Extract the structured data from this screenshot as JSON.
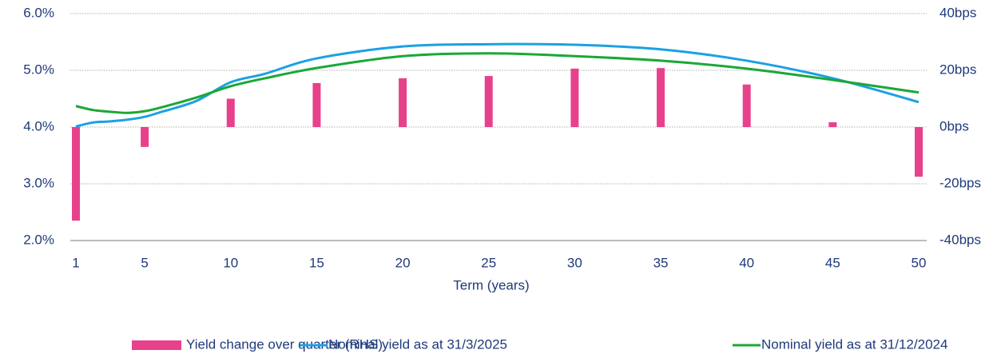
{
  "chart_data": {
    "type": "combo",
    "x_label": "Term (years)",
    "xlim": [
      1,
      50
    ],
    "xticks": [
      1,
      5,
      10,
      15,
      20,
      25,
      30,
      35,
      40,
      45,
      50
    ],
    "ylim": [
      2,
      6
    ],
    "yticks": [
      {
        "value": 2,
        "label": "2.0%"
      },
      {
        "value": 3,
        "label": "3.0%"
      },
      {
        "value": 4,
        "label": "4.0%"
      },
      {
        "value": 5,
        "label": "5.0%"
      },
      {
        "value": 6,
        "label": "6.0%"
      }
    ],
    "y2lim": [
      -40,
      40
    ],
    "y2ticks": [
      {
        "value": -40,
        "label": "-40bps"
      },
      {
        "value": -20,
        "label": "-20bps"
      },
      {
        "value": 0,
        "label": "0bps"
      },
      {
        "value": 20,
        "label": "20bps"
      },
      {
        "value": 40,
        "label": "40bps"
      }
    ],
    "grid": true,
    "legend": "bottom",
    "series": [
      {
        "name": "Yield change over quarter (RHS)",
        "type": "bar",
        "axis": "y2",
        "color": "#e8418c",
        "x": [
          1,
          5,
          10,
          15,
          20,
          25,
          30,
          35,
          40,
          45,
          50
        ],
        "values": [
          -33,
          -7,
          10,
          15.5,
          17.2,
          18,
          20.6,
          20.8,
          15,
          1.7,
          -17.5
        ]
      },
      {
        "name": "Nominal yield as at 31/3/2025",
        "type": "line",
        "color": "#1ba1e2",
        "x": [
          1,
          2,
          3,
          4,
          5,
          6,
          8,
          10,
          12,
          15,
          20,
          25,
          30,
          35,
          40,
          45,
          50
        ],
        "values": [
          4.01,
          4.08,
          4.1,
          4.13,
          4.18,
          4.27,
          4.46,
          4.79,
          4.94,
          5.21,
          5.42,
          5.46,
          5.45,
          5.37,
          5.17,
          4.86,
          4.44
        ]
      },
      {
        "name": "Nominal yield as at 31/12/2024",
        "type": "line",
        "color": "#1aa836",
        "x": [
          1,
          2,
          3,
          4,
          5,
          6,
          8,
          10,
          12,
          15,
          20,
          25,
          30,
          35,
          40,
          45,
          50
        ],
        "values": [
          4.37,
          4.3,
          4.27,
          4.25,
          4.28,
          4.35,
          4.52,
          4.72,
          4.86,
          5.04,
          5.25,
          5.3,
          5.25,
          5.17,
          5.03,
          4.83,
          4.61
        ]
      }
    ]
  }
}
